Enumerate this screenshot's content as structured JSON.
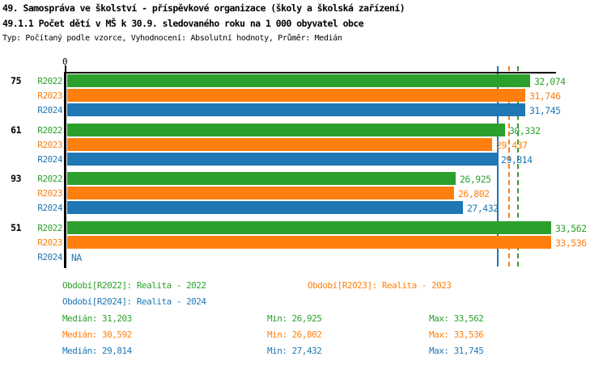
{
  "header": {
    "title": "49. Samospráva ve školství - příspěvkové organizace (školy a školská zařízení)",
    "subtitle": "49.1.1 Počet dětí v MŠ k 30.9. sledovaného roku na 1 000 obyvatel obce",
    "meta": "Typ: Počítaný podle vzorce, Vyhodnocení: Absolutní hodnoty, Průměr: Medián"
  },
  "colors": {
    "R2022": "#2ca02c",
    "R2023": "#ff7f0e",
    "R2024": "#1f77b4",
    "axis": "#000000"
  },
  "chart_data": {
    "type": "bar",
    "orientation": "horizontal",
    "title": "49.1.1 Počet dětí v MŠ k 30.9. sledovaného roku na 1 000 obyvatel obce",
    "axis_zero_label": "0",
    "xlim": [
      0,
      33900
    ],
    "grid": false,
    "series_names": [
      "R2022",
      "R2023",
      "R2024"
    ],
    "groups": [
      {
        "label": "75",
        "bars": [
          {
            "series": "R2022",
            "value": 32074,
            "display": "32,074"
          },
          {
            "series": "R2023",
            "value": 31746,
            "display": "31,746"
          },
          {
            "series": "R2024",
            "value": 31745,
            "display": "31,745"
          }
        ]
      },
      {
        "label": "61",
        "bars": [
          {
            "series": "R2022",
            "value": 30332,
            "display": "30,332"
          },
          {
            "series": "R2023",
            "value": 29437,
            "display": "29,437"
          },
          {
            "series": "R2024",
            "value": 29814,
            "display": "29,814"
          }
        ]
      },
      {
        "label": "93",
        "bars": [
          {
            "series": "R2022",
            "value": 26925,
            "display": "26,925"
          },
          {
            "series": "R2023",
            "value": 26802,
            "display": "26,802"
          },
          {
            "series": "R2024",
            "value": 27432,
            "display": "27,432"
          }
        ]
      },
      {
        "label": "51",
        "bars": [
          {
            "series": "R2022",
            "value": 33562,
            "display": "33,562"
          },
          {
            "series": "R2023",
            "value": 33536,
            "display": "33,536"
          },
          {
            "series": "R2024",
            "value": null,
            "display": "NA"
          }
        ]
      }
    ],
    "median_lines": [
      {
        "series": "R2022",
        "value": 31203,
        "style": "dashed"
      },
      {
        "series": "R2023",
        "value": 30592,
        "style": "dashed"
      },
      {
        "series": "R2024",
        "value": 29814,
        "style": "solid"
      }
    ]
  },
  "legend": {
    "periods": [
      {
        "series": "R2022",
        "label": "Období[R2022]: Realita - 2022"
      },
      {
        "series": "R2023",
        "label": "Období[R2023]: Realita - 2023"
      },
      {
        "series": "R2024",
        "label": "Období[R2024]: Realita - 2024"
      }
    ],
    "stats": [
      {
        "series": "R2022",
        "median": "Medián: 31,203",
        "min": "Min: 26,925",
        "max": "Max: 33,562"
      },
      {
        "series": "R2023",
        "median": "Medián: 30,592",
        "min": "Min: 26,802",
        "max": "Max: 33,536"
      },
      {
        "series": "R2024",
        "median": "Medián: 29,814",
        "min": "Min: 27,432",
        "max": "Max: 31,745"
      }
    ]
  }
}
